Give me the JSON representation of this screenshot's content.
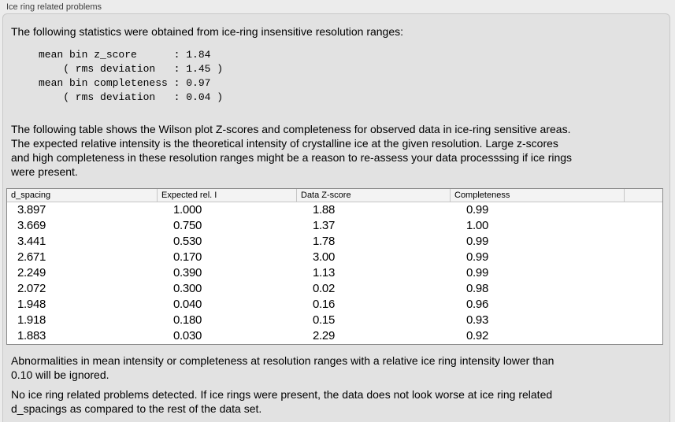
{
  "groupbox": {
    "title": "Ice ring related problems"
  },
  "intro": "The following statistics were obtained from ice-ring insensitive resolution ranges:",
  "stats_block": "mean bin z_score      : 1.84\n    ( rms deviation   : 1.45 )\nmean bin completeness : 0.97\n    ( rms deviation   : 0.04 )",
  "stats": {
    "mean_bin_z_score": "1.84",
    "z_score_rms_deviation": "1.45",
    "mean_bin_completeness": "0.97",
    "completeness_rms_deviation": "0.04"
  },
  "description": "The following table shows the Wilson plot Z-scores and completeness for observed data in ice-ring sensitive areas.\nThe expected relative intensity is the theoretical intensity of crystalline ice at the given resolution. Large z-scores\nand high completeness in these resolution ranges might be a reason to re-assess your data processsing if ice rings\nwere present.",
  "table": {
    "columns": [
      "d_spacing",
      "Expected rel. I",
      "Data Z-score",
      "Completeness"
    ],
    "rows": [
      [
        "3.897",
        "1.000",
        "1.88",
        "0.99"
      ],
      [
        "3.669",
        "0.750",
        "1.37",
        "1.00"
      ],
      [
        "3.441",
        "0.530",
        "1.78",
        "0.99"
      ],
      [
        "2.671",
        "0.170",
        "3.00",
        "0.99"
      ],
      [
        "2.249",
        "0.390",
        "1.13",
        "0.99"
      ],
      [
        "2.072",
        "0.300",
        "0.02",
        "0.98"
      ],
      [
        "1.948",
        "0.040",
        "0.16",
        "0.96"
      ],
      [
        "1.918",
        "0.180",
        "0.15",
        "0.93"
      ],
      [
        "1.883",
        "0.030",
        "2.29",
        "0.92"
      ]
    ]
  },
  "note_ignore": "Abnormalities in mean intensity or completeness at resolution ranges with a relative ice ring intensity lower than\n0.10 will be ignored.",
  "conclusion": "No ice ring related problems detected. If ice rings were present, the data does not look worse at ice ring related\nd_spacings as compared to the rest of the data set."
}
